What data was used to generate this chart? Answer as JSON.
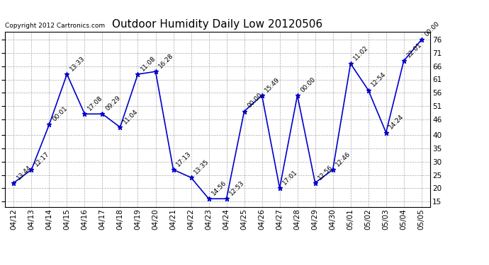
{
  "title": "Outdoor Humidity Daily Low 20120506",
  "copyright": "Copyright 2012 Cartronics.com",
  "x_labels": [
    "04/12",
    "04/13",
    "04/14",
    "04/15",
    "04/16",
    "04/17",
    "04/18",
    "04/19",
    "04/20",
    "04/21",
    "04/22",
    "04/23",
    "04/24",
    "04/25",
    "04/26",
    "04/27",
    "04/28",
    "04/29",
    "04/30",
    "05/01",
    "05/02",
    "05/03",
    "05/04",
    "05/05"
  ],
  "y_values": [
    22,
    27,
    44,
    63,
    48,
    48,
    43,
    63,
    64,
    27,
    24,
    16,
    16,
    49,
    55,
    20,
    55,
    22,
    27,
    67,
    57,
    41,
    68,
    76
  ],
  "point_labels": [
    "13:44",
    "12:17",
    "00:01",
    "13:33",
    "17:08",
    "09:29",
    "11:04",
    "11:08",
    "16:28",
    "17:13",
    "13:35",
    "14:56",
    "12:53",
    "00:00",
    "15:49",
    "17:01",
    "00:00",
    "12:56",
    "12:46",
    "11:02",
    "12:54",
    "14:24",
    "22:01",
    "00:00"
  ],
  "ylim": [
    13,
    79
  ],
  "yticks": [
    15,
    20,
    25,
    30,
    35,
    40,
    46,
    51,
    56,
    61,
    66,
    71,
    76
  ],
  "line_color": "#0000cc",
  "marker_color": "#0000cc",
  "bg_color": "#ffffff",
  "grid_color": "#aaaaaa",
  "title_fontsize": 11,
  "label_fontsize": 6.5,
  "tick_fontsize": 7.5,
  "copyright_fontsize": 6.5
}
